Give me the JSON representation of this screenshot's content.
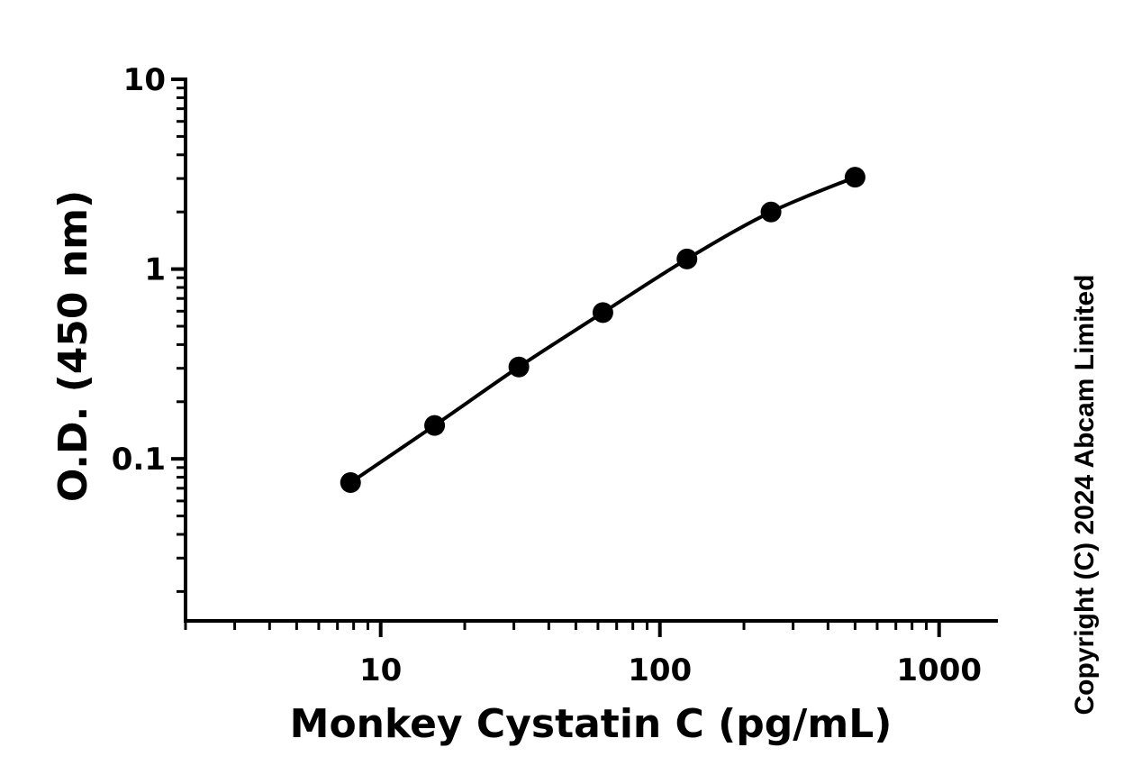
{
  "chart_data": {
    "type": "scatter",
    "x_scale": "log",
    "y_scale": "log",
    "xlabel": "Monkey Cystatin C (pg/mL)",
    "ylabel": "O.D. (450 nm)",
    "xlim": [
      2,
      1600
    ],
    "ylim": [
      0.014,
      10
    ],
    "x_tick_labels": [
      "10",
      "100",
      "1000"
    ],
    "x_tick_values": [
      10,
      100,
      1000
    ],
    "y_tick_labels": [
      "0.1",
      "1",
      "10"
    ],
    "y_tick_values": [
      0.1,
      1,
      10
    ],
    "grid": false,
    "fit_curve": true,
    "series": [
      {
        "x": [
          7.8,
          15.6,
          31.25,
          62.5,
          125,
          250,
          500
        ],
        "y": [
          0.075,
          0.15,
          0.305,
          0.59,
          1.13,
          2.0,
          3.05
        ]
      }
    ]
  },
  "copyright": "Copyright (C) 2024 Abcam Limited",
  "colors": {
    "ink": "#000000",
    "background": "#ffffff"
  }
}
